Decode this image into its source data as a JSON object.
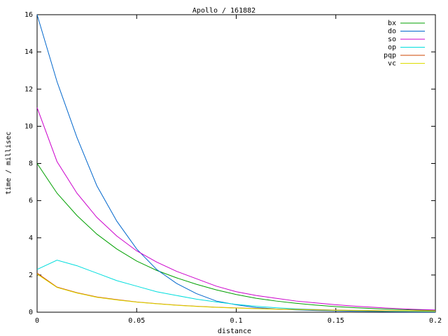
{
  "chart_data": {
    "type": "line",
    "title": "Apollo / 161882",
    "xlabel": "distance",
    "ylabel": "time / millisec",
    "x": [
      0,
      0.01,
      0.02,
      0.03,
      0.04,
      0.05,
      0.06,
      0.07,
      0.08,
      0.09,
      0.1,
      0.11,
      0.12,
      0.13,
      0.14,
      0.15,
      0.16,
      0.17,
      0.18,
      0.19,
      0.2
    ],
    "series": [
      {
        "name": "bx",
        "color": "#00a000",
        "values": [
          8,
          6.4,
          5.2,
          4.2,
          3.4,
          2.75,
          2.25,
          1.85,
          1.5,
          1.2,
          0.95,
          0.75,
          0.6,
          0.48,
          0.38,
          0.3,
          0.24,
          0.19,
          0.15,
          0.12,
          0.1
        ]
      },
      {
        "name": "do",
        "color": "#0066cc",
        "values": [
          16,
          12.4,
          9.4,
          6.8,
          4.9,
          3.4,
          2.3,
          1.55,
          1.0,
          0.6,
          0.4,
          0.25,
          0.17,
          0.12,
          0.09,
          0.07,
          0.05,
          0.04,
          0.03,
          0.02,
          0.02
        ]
      },
      {
        "name": "so",
        "color": "#cc00cc",
        "values": [
          11,
          8.1,
          6.4,
          5.1,
          4.1,
          3.3,
          2.7,
          2.2,
          1.8,
          1.4,
          1.1,
          0.9,
          0.75,
          0.6,
          0.5,
          0.4,
          0.32,
          0.26,
          0.2,
          0.15,
          0.12
        ]
      },
      {
        "name": "op",
        "color": "#00dddd",
        "values": [
          2.3,
          2.8,
          2.5,
          2.1,
          1.7,
          1.4,
          1.1,
          0.9,
          0.7,
          0.55,
          0.42,
          0.32,
          0.24,
          0.18,
          0.14,
          0.11,
          0.09,
          0.07,
          0.06,
          0.05,
          0.04
        ]
      },
      {
        "name": "pqp",
        "color": "#cc4400",
        "values": [
          2.1,
          1.35,
          1.05,
          0.82,
          0.68,
          0.55,
          0.46,
          0.38,
          0.32,
          0.27,
          0.23,
          0.2,
          0.17,
          0.15,
          0.13,
          0.11,
          0.1,
          0.09,
          0.08,
          0.07,
          0.06
        ]
      },
      {
        "name": "vc",
        "color": "#dddd00",
        "values": [
          2.05,
          1.33,
          1.03,
          0.8,
          0.66,
          0.54,
          0.45,
          0.37,
          0.31,
          0.26,
          0.22,
          0.19,
          0.16,
          0.14,
          0.12,
          0.1,
          0.09,
          0.08,
          0.07,
          0.06,
          0.05
        ]
      }
    ],
    "xlim": [
      0,
      0.2
    ],
    "xticks": [
      0,
      0.05,
      0.1,
      0.15,
      0.2
    ],
    "ylim": [
      0,
      16
    ],
    "yticks": [
      0,
      2,
      4,
      6,
      8,
      10,
      12,
      14,
      16
    ],
    "legend": "upper right"
  }
}
